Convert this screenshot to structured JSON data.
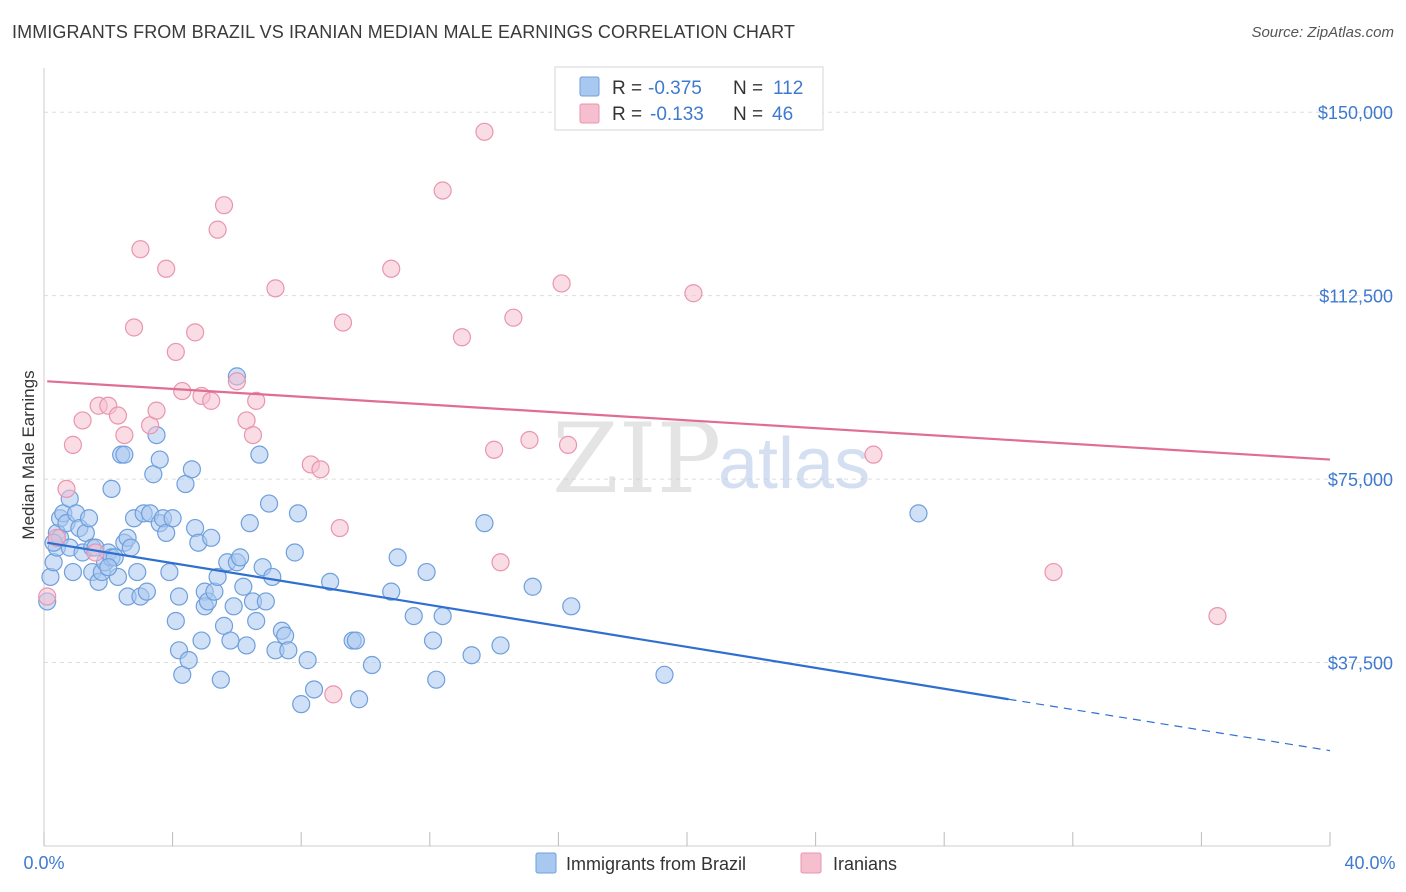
{
  "title": "IMMIGRANTS FROM BRAZIL VS IRANIAN MEDIAN MALE EARNINGS CORRELATION CHART",
  "source": "Source: ZipAtlas.com",
  "watermark": {
    "zip": "ZIP",
    "atlas": "atlas"
  },
  "colors": {
    "brazil_fill": "#a9c8f0",
    "brazil_stroke": "#6f9fdc",
    "brazil_line": "#2f6fd0",
    "iran_fill": "#f6bfd0",
    "iran_stroke": "#e995b0",
    "iran_line": "#e06d93",
    "grid": "#dddddd",
    "tick_label": "#3f7ad0"
  },
  "legend": {
    "rows": [
      {
        "r_label": "R =",
        "r_value": "-0.375",
        "n_label": "N =",
        "n_value": "112"
      },
      {
        "r_label": "R =",
        "r_value": "-0.133",
        "n_label": "N =",
        "n_value": "46"
      }
    ]
  },
  "chart_data": {
    "type": "scatter",
    "xlabel": "",
    "ylabel": "Median Male Earnings",
    "xlim": [
      0,
      40
    ],
    "ylim": [
      0,
      157000
    ],
    "y_ticks": [
      37500,
      75000,
      112500,
      150000
    ],
    "y_tick_labels": [
      "$37,500",
      "$75,000",
      "$112,500",
      "$150,000"
    ],
    "x_tick_labels": [
      "0.0%",
      "40.0%"
    ],
    "grid": "horizontal dashed",
    "legend_position": "top-center",
    "series": [
      {
        "name": "Immigrants from Brazil",
        "r": -0.375,
        "n": 112,
        "trend": {
          "x0": 0.1,
          "y0": 62000,
          "x1": 30,
          "y1": 30000,
          "dash_x1": 40,
          "dash_y1": 19500
        },
        "points": [
          [
            0.1,
            50000
          ],
          [
            0.2,
            55000
          ],
          [
            0.3,
            58000
          ],
          [
            0.4,
            61000
          ],
          [
            0.4,
            64000
          ],
          [
            0.5,
            63000
          ],
          [
            0.5,
            67000
          ],
          [
            0.6,
            68000
          ],
          [
            0.7,
            66000
          ],
          [
            0.8,
            61000
          ],
          [
            0.8,
            71000
          ],
          [
            0.9,
            56000
          ],
          [
            1.0,
            68000
          ],
          [
            1.1,
            65000
          ],
          [
            1.2,
            60000
          ],
          [
            1.3,
            64000
          ],
          [
            1.4,
            67000
          ],
          [
            1.5,
            56000
          ],
          [
            1.5,
            61000
          ],
          [
            1.6,
            61000
          ],
          [
            1.7,
            54000
          ],
          [
            1.8,
            56000
          ],
          [
            1.9,
            58000
          ],
          [
            2.0,
            60000
          ],
          [
            2.1,
            59000
          ],
          [
            2.1,
            73000
          ],
          [
            2.2,
            59000
          ],
          [
            2.3,
            55000
          ],
          [
            2.4,
            80000
          ],
          [
            2.5,
            62000
          ],
          [
            2.5,
            80000
          ],
          [
            2.6,
            51000
          ],
          [
            2.6,
            63000
          ],
          [
            2.7,
            61000
          ],
          [
            2.8,
            67000
          ],
          [
            2.9,
            56000
          ],
          [
            3.0,
            51000
          ],
          [
            3.1,
            68000
          ],
          [
            3.2,
            52000
          ],
          [
            3.3,
            68000
          ],
          [
            3.4,
            76000
          ],
          [
            3.5,
            84000
          ],
          [
            3.6,
            79000
          ],
          [
            3.6,
            66000
          ],
          [
            3.7,
            67000
          ],
          [
            3.8,
            64000
          ],
          [
            3.9,
            56000
          ],
          [
            4.0,
            67000
          ],
          [
            4.1,
            46000
          ],
          [
            4.2,
            51000
          ],
          [
            4.2,
            40000
          ],
          [
            4.3,
            35000
          ],
          [
            4.4,
            74000
          ],
          [
            4.5,
            38000
          ],
          [
            4.6,
            77000
          ],
          [
            4.7,
            65000
          ],
          [
            4.8,
            62000
          ],
          [
            4.9,
            42000
          ],
          [
            5.0,
            52000
          ],
          [
            5.0,
            49000
          ],
          [
            5.1,
            50000
          ],
          [
            5.2,
            63000
          ],
          [
            5.3,
            52000
          ],
          [
            5.4,
            55000
          ],
          [
            5.5,
            34000
          ],
          [
            5.6,
            45000
          ],
          [
            5.7,
            58000
          ],
          [
            5.8,
            42000
          ],
          [
            5.9,
            49000
          ],
          [
            6.0,
            58000
          ],
          [
            6.1,
            59000
          ],
          [
            6.2,
            53000
          ],
          [
            6.3,
            41000
          ],
          [
            6.4,
            66000
          ],
          [
            6.5,
            50000
          ],
          [
            6.6,
            46000
          ],
          [
            6.7,
            80000
          ],
          [
            6.8,
            57000
          ],
          [
            6.9,
            50000
          ],
          [
            7.0,
            70000
          ],
          [
            7.1,
            55000
          ],
          [
            7.2,
            40000
          ],
          [
            7.4,
            44000
          ],
          [
            7.5,
            43000
          ],
          [
            7.6,
            40000
          ],
          [
            7.8,
            60000
          ],
          [
            7.9,
            68000
          ],
          [
            8.0,
            29000
          ],
          [
            8.2,
            38000
          ],
          [
            8.4,
            32000
          ],
          [
            8.9,
            54000
          ],
          [
            9.6,
            42000
          ],
          [
            9.7,
            42000
          ],
          [
            9.8,
            30000
          ],
          [
            10.2,
            37000
          ],
          [
            10.8,
            52000
          ],
          [
            11.0,
            59000
          ],
          [
            11.5,
            47000
          ],
          [
            11.9,
            56000
          ],
          [
            12.1,
            42000
          ],
          [
            12.2,
            34000
          ],
          [
            12.4,
            47000
          ],
          [
            13.3,
            39000
          ],
          [
            13.7,
            66000
          ],
          [
            14.2,
            41000
          ],
          [
            15.2,
            53000
          ],
          [
            16.4,
            49000
          ],
          [
            19.3,
            35000
          ],
          [
            27.2,
            68000
          ],
          [
            0.3,
            62000
          ],
          [
            2.0,
            57000
          ],
          [
            6.0,
            96000
          ]
        ]
      },
      {
        "name": "Iranians",
        "r": -0.133,
        "n": 46,
        "trend": {
          "x0": 0.1,
          "y0": 95000,
          "x1": 40,
          "y1": 79000
        },
        "points": [
          [
            0.1,
            51000
          ],
          [
            0.4,
            63000
          ],
          [
            0.7,
            73000
          ],
          [
            0.9,
            82000
          ],
          [
            1.2,
            87000
          ],
          [
            1.6,
            60000
          ],
          [
            1.7,
            90000
          ],
          [
            2.0,
            90000
          ],
          [
            2.3,
            88000
          ],
          [
            2.5,
            84000
          ],
          [
            2.8,
            106000
          ],
          [
            3.0,
            122000
          ],
          [
            3.3,
            86000
          ],
          [
            3.5,
            89000
          ],
          [
            3.8,
            118000
          ],
          [
            4.1,
            101000
          ],
          [
            4.3,
            93000
          ],
          [
            4.7,
            105000
          ],
          [
            4.9,
            92000
          ],
          [
            5.2,
            91000
          ],
          [
            5.4,
            126000
          ],
          [
            5.6,
            131000
          ],
          [
            6.0,
            95000
          ],
          [
            6.3,
            87000
          ],
          [
            6.5,
            84000
          ],
          [
            6.6,
            91000
          ],
          [
            7.2,
            114000
          ],
          [
            8.3,
            78000
          ],
          [
            8.6,
            77000
          ],
          [
            9.0,
            31000
          ],
          [
            9.2,
            65000
          ],
          [
            9.3,
            107000
          ],
          [
            10.8,
            118000
          ],
          [
            12.4,
            134000
          ],
          [
            13.0,
            104000
          ],
          [
            13.7,
            146000
          ],
          [
            14.0,
            81000
          ],
          [
            14.2,
            58000
          ],
          [
            14.6,
            108000
          ],
          [
            15.1,
            83000
          ],
          [
            16.1,
            115000
          ],
          [
            16.3,
            82000
          ],
          [
            20.2,
            113000
          ],
          [
            25.8,
            80000
          ],
          [
            31.4,
            56000
          ],
          [
            36.5,
            47000
          ]
        ]
      }
    ]
  }
}
